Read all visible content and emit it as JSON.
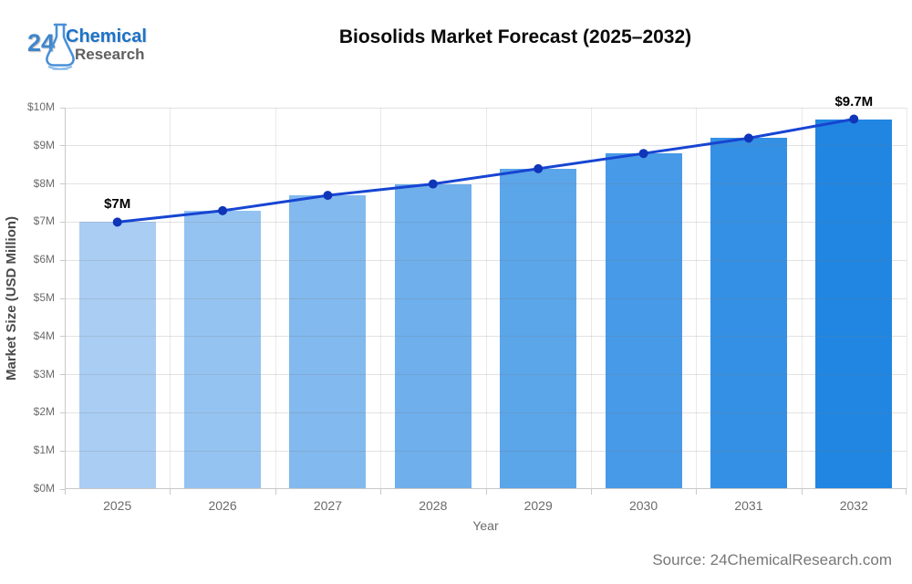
{
  "header": {
    "logo": {
      "number": "24",
      "word1": "Chemical",
      "word2": "Research"
    },
    "title": "Biosolids Market Forecast (2025–2032)"
  },
  "chart_data": {
    "type": "bar",
    "title": "Biosolids Market Forecast (2025–2032)",
    "categories": [
      "2025",
      "2026",
      "2027",
      "2028",
      "2029",
      "2030",
      "2031",
      "2032"
    ],
    "series": [
      {
        "name": "Market Size bars (USD Million)",
        "type": "bar",
        "values": [
          7.0,
          7.3,
          7.7,
          8.0,
          8.4,
          8.8,
          9.2,
          9.7
        ],
        "bar_colors": [
          "#a9cdf3",
          "#95c3f1",
          "#82b9ee",
          "#6eafec",
          "#5ba5e9",
          "#479ae7",
          "#3490e4",
          "#2086e2"
        ]
      },
      {
        "name": "Market Size trend line (USD Million)",
        "type": "line",
        "values": [
          7.0,
          7.3,
          7.7,
          8.0,
          8.4,
          8.8,
          9.2,
          9.7
        ],
        "line_color": "#1745d2",
        "marker_color": "#0f35b8"
      }
    ],
    "xlabel": "Year",
    "ylabel": "Market Size (USD Million)",
    "ylim": [
      0,
      10
    ],
    "grid": true,
    "legend": "none",
    "yticks": [
      {
        "value": 0,
        "label": "$0M"
      },
      {
        "value": 1,
        "label": "$1M"
      },
      {
        "value": 2,
        "label": "$2M"
      },
      {
        "value": 3,
        "label": "$3M"
      },
      {
        "value": 4,
        "label": "$4M"
      },
      {
        "value": 5,
        "label": "$5M"
      },
      {
        "value": 6,
        "label": "$6M"
      },
      {
        "value": 7,
        "label": "$7M"
      },
      {
        "value": 8,
        "label": "$8M"
      },
      {
        "value": 9,
        "label": "$9M"
      },
      {
        "value": 10,
        "label": "$10M"
      }
    ],
    "annotations": [
      {
        "category": "2025",
        "text": "$7M"
      },
      {
        "category": "2032",
        "text": "$9.7M"
      }
    ]
  },
  "footer": {
    "source": "Source: 24ChemicalResearch.com"
  },
  "colors": {
    "grid": "#e9e9e9",
    "axis": "#c9c9c9",
    "tick_label": "#6b6b6b",
    "title": "#0a0a0a",
    "annotation": "#000000"
  }
}
